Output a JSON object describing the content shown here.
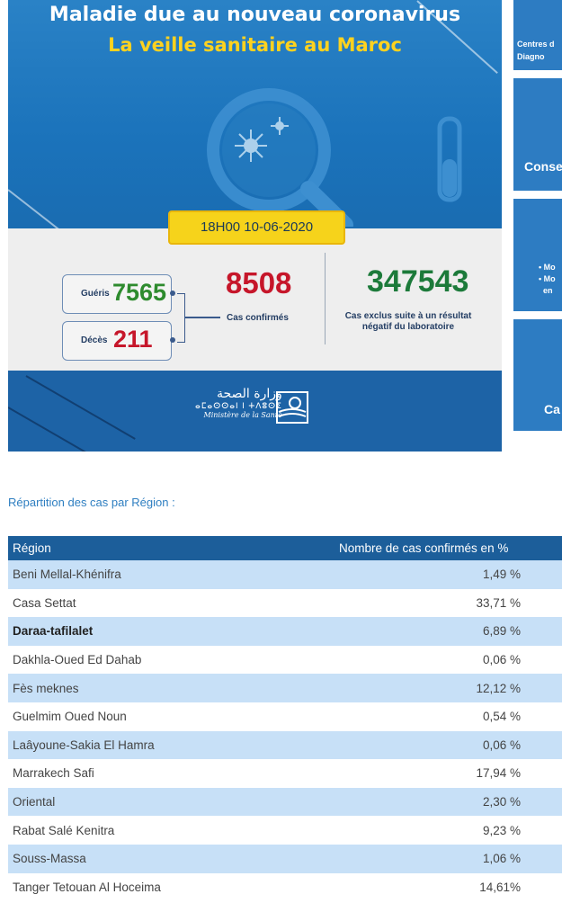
{
  "infographic": {
    "title_line1": "Maladie due au nouveau coronavirus",
    "title_line2": "La veille sanitaire au Maroc",
    "date_time": "18H00  10-06-2020",
    "recovered_label": "Guéris",
    "recovered_value": "7565",
    "deaths_label": "Décès",
    "deaths_value": "211",
    "confirmed_value": "8508",
    "confirmed_label": "Cas confirmés",
    "excluded_value": "347543",
    "excluded_label": "Cas exclus suite à un résultat négatif du laboratoire",
    "ministry_ar": "وزارة الصحة",
    "ministry_tifinagh": "ⴰⵎⴰⵙⵙⴰⵏ ⵏ ⵜⴷⵓⵙⵉ",
    "ministry_fr": "Ministère de la Santé",
    "colors": {
      "confirmed": "#c6162a",
      "recovered": "#2e8b2e",
      "excluded": "#1c7a3a",
      "accent": "#ffd21f"
    }
  },
  "side_panels": [
    {
      "text": "Centres d\nDiagno"
    },
    {
      "text": "Conse"
    },
    {
      "text": "• Mo\n• Mo\n  en"
    },
    {
      "text": "Ca"
    }
  ],
  "section": {
    "title": "Répartition des cas par Région :"
  },
  "table": {
    "headers": [
      "Région",
      "Nombre de cas confirmés en %"
    ],
    "rows": [
      {
        "region": "Beni Mellal-Khénifra",
        "pct": "1,49 %"
      },
      {
        "region": "Casa Settat",
        "pct": "33,71 %"
      },
      {
        "region": "Daraa-tafilalet",
        "pct": "6,89 %"
      },
      {
        "region": "Dakhla-Oued Ed Dahab",
        "pct": "0,06 %"
      },
      {
        "region": "Fès meknes",
        "pct": "12,12 %"
      },
      {
        "region": "Guelmim Oued Noun",
        "pct": "0,54 %"
      },
      {
        "region": "Laâyoune-Sakia El Hamra",
        "pct": "0,06 %"
      },
      {
        "region": "Marrakech Safi",
        "pct": "17,94 %"
      },
      {
        "region": "Oriental",
        "pct": "2,30 %"
      },
      {
        "region": "Rabat Salé Kenitra",
        "pct": "9,23 %"
      },
      {
        "region": "Souss-Massa",
        "pct": "1,06 %"
      },
      {
        "region": "Tanger Tetouan Al Hoceima",
        "pct": "14,61%"
      }
    ]
  }
}
